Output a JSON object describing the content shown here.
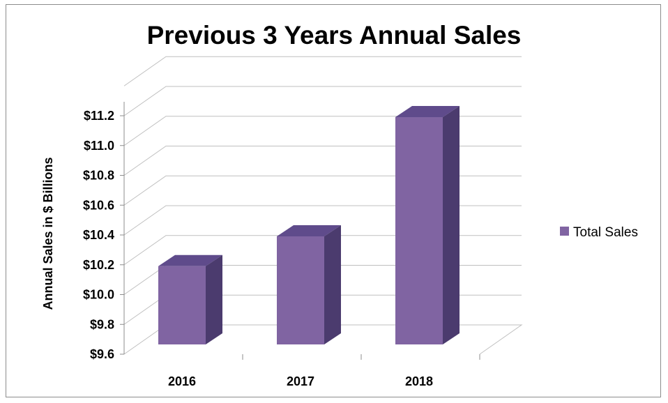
{
  "chart_data": {
    "type": "bar",
    "title": "Previous 3 Years Annual Sales",
    "categories": [
      "2016",
      "2017",
      "2018"
    ],
    "series": [
      {
        "name": "Total Sales",
        "values": [
          10.2,
          10.4,
          11.2
        ],
        "color": "#8064A2"
      }
    ],
    "ylabel": "Annual Sales in $ Billions",
    "xlabel": "",
    "ylim": [
      9.6,
      11.2
    ],
    "y_ticks": [
      "$9.6",
      "$9.8",
      "$10.0",
      "$10.2",
      "$10.4",
      "$10.6",
      "$10.8",
      "$11.0",
      "$11.2"
    ],
    "grid": true,
    "legend_position": "right",
    "three_d": true
  }
}
